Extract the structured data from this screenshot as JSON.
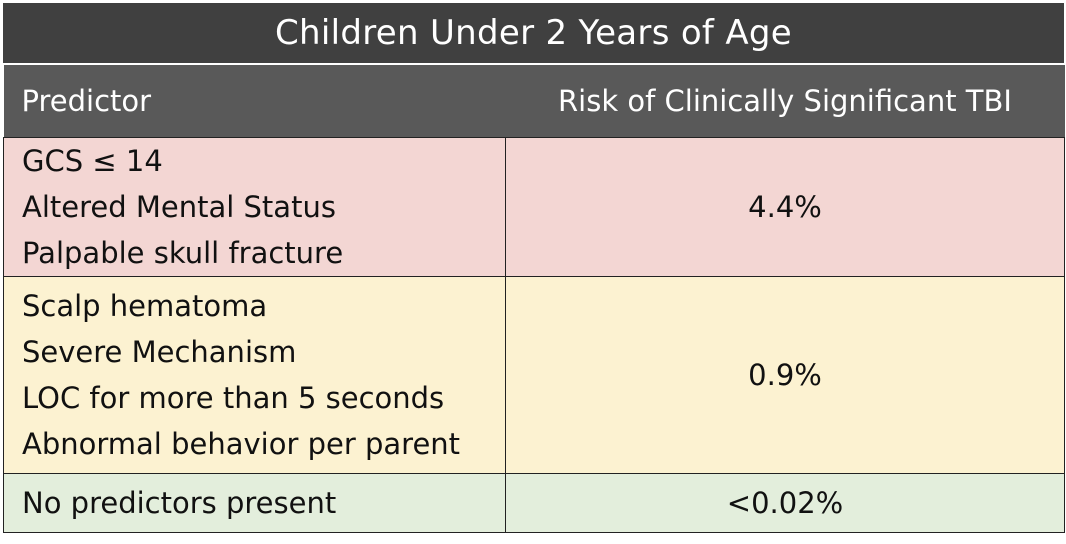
{
  "title": "Children Under 2 Years of Age",
  "headers": {
    "predictor": "Predictor",
    "risk": "Risk of Clinically Significant TBI"
  },
  "rows": [
    {
      "group": "high",
      "predictors": [
        "GCS ≤ 14",
        "Altered Mental Status",
        "Palpable skull fracture"
      ],
      "risk": "4.4%",
      "color": "#f3d6d3"
    },
    {
      "group": "intermediate",
      "predictors": [
        "Scalp hematoma",
        "Severe Mechanism",
        "LOC for more than 5 seconds",
        "Abnormal behavior per parent"
      ],
      "risk": "0.9%",
      "color": "#fcf2d1"
    },
    {
      "group": "low",
      "predictors": [
        "No predictors present"
      ],
      "risk": "<0.02%",
      "color": "#e3eedc"
    }
  ],
  "colors": {
    "title_bg": "#404040",
    "header_bg": "#595959"
  }
}
